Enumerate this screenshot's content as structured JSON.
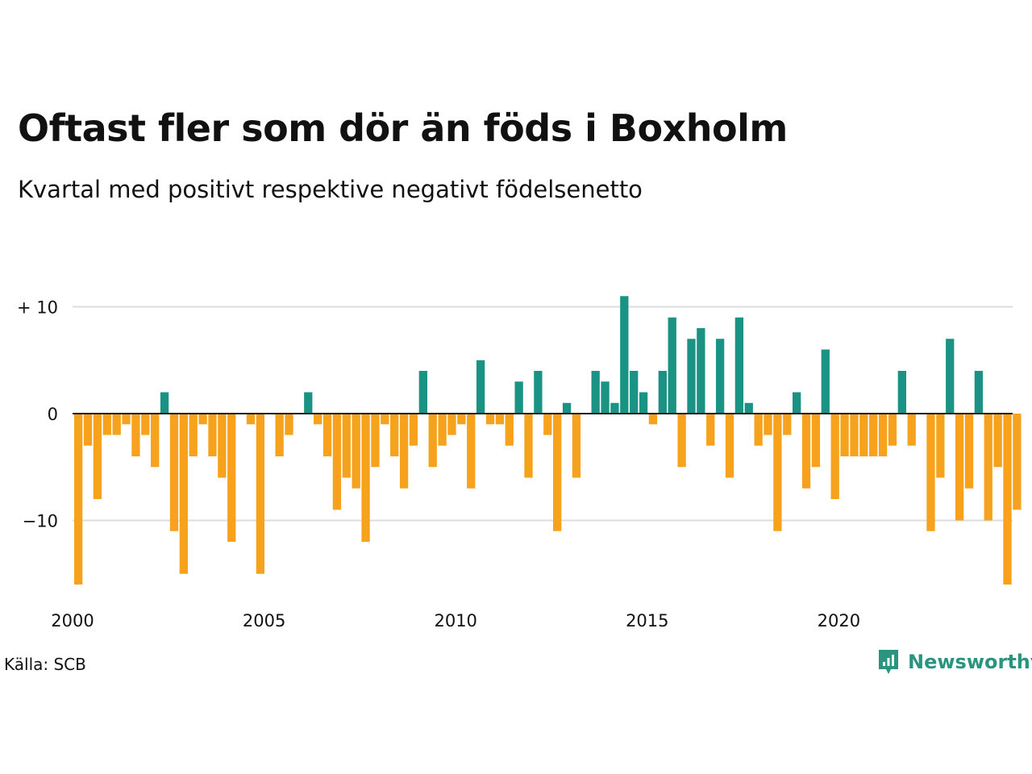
{
  "title": "Oftast fler som dör än föds i Boxholm",
  "subtitle": "Kvartal med positivt respektive negativt födelsenetto",
  "source": "Källa: SCB",
  "brand": {
    "name": "Newsworthy",
    "color": "#2a9480",
    "icon": "newsworthy-logo-icon"
  },
  "colors": {
    "positive": "#1a9385",
    "negative": "#f7a21c",
    "grid": "#dddddd",
    "axis": "#222222"
  },
  "chart_data": {
    "type": "bar",
    "title": "Oftast fler som dör än föds i Boxholm",
    "subtitle": "Kvartal med positivt respektive negativt födelsenetto",
    "xlabel": "",
    "ylabel": "",
    "x_start": "2000 Q1",
    "period": "quarter",
    "ylim": [
      -17,
      13
    ],
    "y_ticks": [
      {
        "value": 10,
        "label": "+ 10"
      },
      {
        "value": 0,
        "label": "0"
      },
      {
        "value": -10,
        "label": "−10"
      }
    ],
    "x_ticks": [
      {
        "year": 2000,
        "label": "2000"
      },
      {
        "year": 2005,
        "label": "2005"
      },
      {
        "year": 2010,
        "label": "2010"
      },
      {
        "year": 2015,
        "label": "2015"
      },
      {
        "year": 2020,
        "label": "2020"
      }
    ],
    "grid": true,
    "values": [
      -16,
      -3,
      -8,
      -2,
      -2,
      -1,
      -4,
      -2,
      -5,
      2,
      -11,
      -15,
      -4,
      -1,
      -4,
      -6,
      -12,
      0,
      -1,
      -15,
      0,
      -4,
      -2,
      0,
      2,
      -1,
      -4,
      -9,
      -6,
      -7,
      -12,
      -5,
      -1,
      -4,
      -7,
      -3,
      4,
      -5,
      -3,
      -2,
      -1,
      -7,
      5,
      -1,
      -1,
      -3,
      3,
      -6,
      4,
      -2,
      -11,
      1,
      -6,
      0,
      4,
      3,
      1,
      11,
      4,
      2,
      -1,
      4,
      9,
      -5,
      7,
      8,
      -3,
      7,
      -6,
      9,
      1,
      -3,
      -2,
      -11,
      -2,
      2,
      -7,
      -5,
      6,
      -8,
      -4,
      -4,
      -4,
      -4,
      -4,
      -3,
      4,
      -3,
      0,
      -11,
      -6,
      7,
      -10,
      -7,
      4,
      -10,
      -5,
      -16,
      -9
    ]
  }
}
